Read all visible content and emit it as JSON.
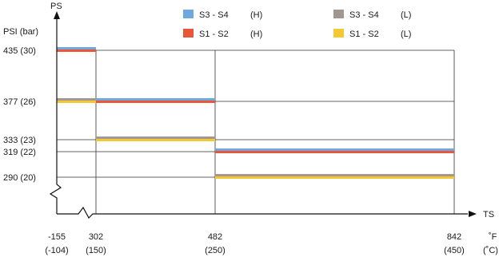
{
  "chart_data": {
    "type": "line",
    "y_axis": {
      "name": "PS",
      "unit_label": "PSI (bar)"
    },
    "x_axis": {
      "name": "TS",
      "unit_top": "˚F",
      "unit_bottom": "(˚C)"
    },
    "y_ticks": [
      {
        "value": 290,
        "label": "290 (20)"
      },
      {
        "value": 319,
        "label": "319 (22)"
      },
      {
        "value": 333,
        "label": "333 (23)"
      },
      {
        "value": 377,
        "label": "377 (26)"
      },
      {
        "value": 435,
        "label": "435 (30)"
      }
    ],
    "x_ticks": [
      {
        "value": -155,
        "label_f": "-155",
        "label_c": "(-104)"
      },
      {
        "value": 302,
        "label_f": "302",
        "label_c": "(150)"
      },
      {
        "value": 482,
        "label_f": "482",
        "label_c": "(250)"
      },
      {
        "value": 842,
        "label_f": "842",
        "label_c": "(450)"
      }
    ],
    "legend_position": "top",
    "series": [
      {
        "name": "S3 - S4",
        "class": "(H)",
        "color": "#6fa8dc",
        "points": [
          {
            "x": [
              -155,
              302
            ],
            "y": 435
          },
          {
            "x": [
              302,
              482
            ],
            "y": 377
          },
          {
            "x": [
              482,
              842
            ],
            "y": 319
          }
        ]
      },
      {
        "name": "S1 - S2",
        "class": "(H)",
        "color": "#e8573a",
        "points": [
          {
            "x": [
              -155,
              302
            ],
            "y": 435
          },
          {
            "x": [
              302,
              482
            ],
            "y": 377
          },
          {
            "x": [
              482,
              842
            ],
            "y": 319
          }
        ]
      },
      {
        "name": "S3 - S4",
        "class": "(L)",
        "color": "#a39890",
        "points": [
          {
            "x": [
              -155,
              302
            ],
            "y": 377
          },
          {
            "x": [
              302,
              482
            ],
            "y": 333
          },
          {
            "x": [
              482,
              842
            ],
            "y": 290
          }
        ]
      },
      {
        "name": "S1 - S2",
        "class": "(L)",
        "color": "#f2c933",
        "points": [
          {
            "x": [
              -155,
              302
            ],
            "y": 377
          },
          {
            "x": [
              302,
              482
            ],
            "y": 333
          },
          {
            "x": [
              482,
              842
            ],
            "y": 290
          }
        ]
      }
    ]
  }
}
